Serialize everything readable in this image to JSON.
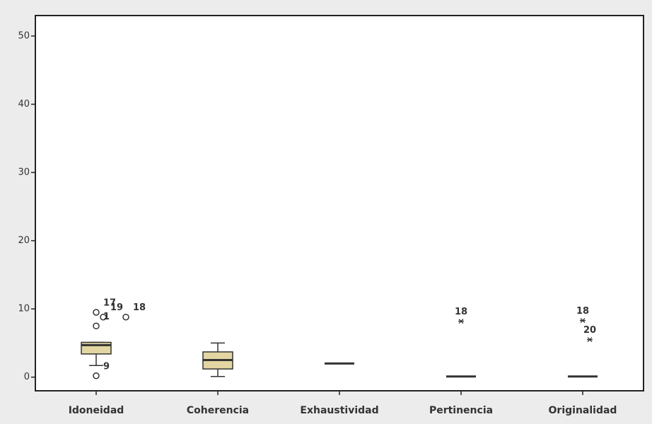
{
  "chart_data": {
    "type": "box",
    "categories": [
      "Idoneidad",
      "Coherencia",
      "Exhaustividad",
      "Pertinencia",
      "Originalidad"
    ],
    "color": "#e3d6a2",
    "ylim": [
      -2,
      53
    ],
    "yticks": [
      0,
      10,
      20,
      30,
      40,
      50
    ],
    "boxes": [
      {
        "min": 1.7,
        "q1": 3.4,
        "median": 4.7,
        "q3": 5.1,
        "max": 5.1,
        "outliers": [
          {
            "value": 9.5,
            "label": "17",
            "symbol": "circle"
          },
          {
            "value": 8.8,
            "label": "19",
            "symbol": "circle"
          },
          {
            "value": 7.5,
            "label": "1",
            "symbol": "circle"
          },
          {
            "value": 8.8,
            "label": "18",
            "symbol": "circle"
          },
          {
            "value": 0.2,
            "label": "9",
            "symbol": "circle"
          }
        ]
      },
      {
        "min": 0.1,
        "q1": 1.2,
        "median": 2.5,
        "q3": 3.7,
        "max": 5.0,
        "outliers": []
      },
      {
        "min": 2.0,
        "q1": 2.0,
        "median": 2.0,
        "q3": 2.0,
        "max": 2.0,
        "outliers": []
      },
      {
        "min": 0.1,
        "q1": 0.1,
        "median": 0.1,
        "q3": 0.1,
        "max": 0.1,
        "outliers": [
          {
            "value": 8.2,
            "label": "18",
            "symbol": "star"
          }
        ]
      },
      {
        "min": 0.1,
        "q1": 0.1,
        "median": 0.1,
        "q3": 0.1,
        "max": 0.1,
        "outliers": [
          {
            "value": 8.3,
            "label": "18",
            "symbol": "star"
          },
          {
            "value": 5.5,
            "label": "20",
            "symbol": "star"
          }
        ]
      }
    ]
  }
}
